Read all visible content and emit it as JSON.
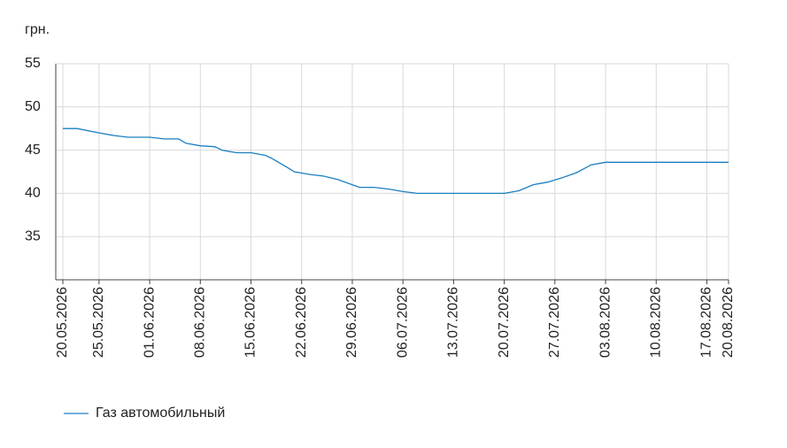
{
  "chart_data": {
    "type": "line",
    "y_label": "грн.",
    "x": [
      "20.05.2026",
      "22.05.2026",
      "25.05.2026",
      "27.05.2026",
      "29.05.2026",
      "01.06.2026",
      "03.06.2026",
      "05.06.2026",
      "06.06.2026",
      "08.06.2026",
      "10.06.2026",
      "11.06.2026",
      "13.06.2026",
      "15.06.2026",
      "17.06.2026",
      "18.06.2026",
      "20.06.2026",
      "21.06.2026",
      "23.06.2026",
      "25.06.2026",
      "27.06.2026",
      "28.06.2026",
      "30.06.2026",
      "02.07.2026",
      "04.07.2026",
      "06.07.2026",
      "08.07.2026",
      "13.07.2026",
      "20.07.2026",
      "22.07.2026",
      "24.07.2026",
      "26.07.2026",
      "28.07.2026",
      "30.07.2026",
      "01.08.2026",
      "03.08.2026",
      "10.08.2026",
      "17.08.2026",
      "20.08.2026"
    ],
    "series": [
      {
        "name": "Газ автомобильный",
        "color": "#1a7fc1",
        "values": [
          47.5,
          47.5,
          47.0,
          46.7,
          46.5,
          46.5,
          46.3,
          46.3,
          45.8,
          45.5,
          45.4,
          45.0,
          44.7,
          44.7,
          44.4,
          44.0,
          43.0,
          42.5,
          42.2,
          42.0,
          41.6,
          41.3,
          40.7,
          40.7,
          40.5,
          40.2,
          40.0,
          40.0,
          40.0,
          40.3,
          41.0,
          41.3,
          41.8,
          42.4,
          43.3,
          43.6,
          43.6,
          43.6,
          43.6
        ]
      }
    ],
    "xticks": [
      "20.05.2026",
      "25.05.2026",
      "01.06.2026",
      "08.06.2026",
      "15.06.2026",
      "22.06.2026",
      "29.06.2026",
      "06.07.2026",
      "13.07.2026",
      "20.07.2026",
      "27.07.2026",
      "03.08.2026",
      "10.08.2026",
      "17.08.2026",
      "20.08.2026"
    ],
    "ylim": [
      30,
      55
    ],
    "yticks": [
      35,
      40,
      45,
      50,
      55
    ],
    "grid": true,
    "legend": "bottom"
  }
}
